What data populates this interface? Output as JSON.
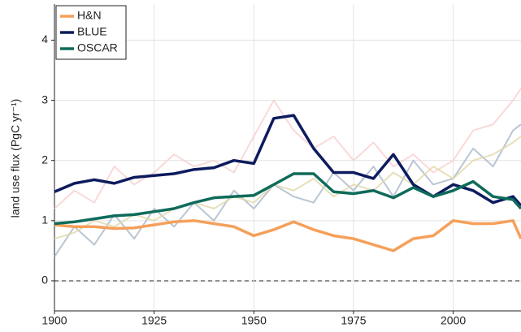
{
  "chart_data": {
    "type": "line",
    "y_label": "land use flux (PgC yr⁻¹)",
    "x": [
      1900,
      1905,
      1910,
      1915,
      1920,
      1925,
      1930,
      1935,
      1940,
      1945,
      1950,
      1955,
      1960,
      1965,
      1970,
      1975,
      1980,
      1985,
      1990,
      1995,
      2000,
      2005,
      2010,
      2015,
      2017
    ],
    "series": [
      {
        "color": "#a8b8c8",
        "values": [
          0.4,
          0.9,
          0.6,
          1.1,
          0.7,
          1.2,
          0.9,
          1.3,
          1.0,
          1.5,
          1.2,
          1.6,
          1.4,
          1.3,
          1.8,
          1.5,
          1.9,
          1.4,
          2.0,
          1.6,
          1.7,
          2.2,
          1.9,
          2.5,
          2.6
        ]
      },
      {
        "color": "#f8d0d0",
        "values": [
          1.2,
          1.5,
          1.3,
          1.9,
          1.6,
          1.8,
          2.1,
          1.9,
          2.0,
          1.8,
          2.4,
          3.0,
          2.5,
          2.2,
          2.4,
          2.0,
          2.3,
          1.9,
          2.1,
          1.8,
          2.0,
          2.5,
          2.6,
          3.0,
          3.2
        ]
      },
      {
        "color": "#e0d8a8",
        "values": [
          0.7,
          0.8,
          1.0,
          0.9,
          1.1,
          1.0,
          1.2,
          1.3,
          1.2,
          1.4,
          1.3,
          1.6,
          1.5,
          1.7,
          1.4,
          1.6,
          1.5,
          1.8,
          1.6,
          1.9,
          1.7,
          2.0,
          2.1,
          2.3,
          2.4
        ]
      },
      {
        "name": "H&N",
        "color": "#f5a05a",
        "values": [
          0.93,
          0.9,
          0.9,
          0.87,
          0.88,
          0.93,
          0.98,
          1.0,
          0.95,
          0.9,
          0.75,
          0.85,
          0.98,
          0.85,
          0.75,
          0.7,
          0.6,
          0.5,
          0.7,
          0.75,
          1.0,
          0.95,
          0.95,
          1.0,
          0.7
        ]
      },
      {
        "name": "BLUE",
        "color": "#0d1b5e",
        "values": [
          1.48,
          1.62,
          1.68,
          1.62,
          1.72,
          1.75,
          1.78,
          1.85,
          1.88,
          2.0,
          1.95,
          2.7,
          2.75,
          2.2,
          1.8,
          1.8,
          1.7,
          2.1,
          1.6,
          1.4,
          1.6,
          1.5,
          1.3,
          1.4,
          1.25
        ]
      },
      {
        "name": "OSCAR",
        "color": "#0e6b5a",
        "values": [
          0.95,
          0.98,
          1.03,
          1.08,
          1.1,
          1.15,
          1.2,
          1.3,
          1.38,
          1.4,
          1.42,
          1.6,
          1.78,
          1.78,
          1.48,
          1.45,
          1.5,
          1.38,
          1.55,
          1.4,
          1.5,
          1.65,
          1.4,
          1.35,
          1.2
        ]
      }
    ],
    "xlim": [
      1900,
      2017
    ],
    "xticks": [
      1900,
      1925,
      1950,
      1975,
      2000
    ],
    "ylim": [
      -0.5,
      4.6
    ],
    "yticks": [
      0,
      1,
      2,
      3,
      4
    ],
    "grid": true,
    "zero_line": true,
    "legend": "upper-left"
  }
}
